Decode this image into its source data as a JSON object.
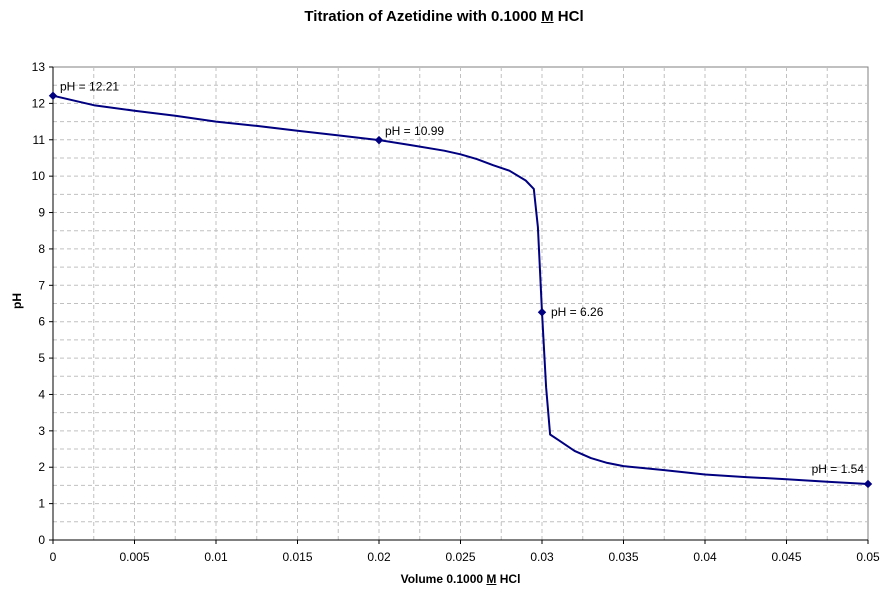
{
  "chart_data": {
    "type": "line",
    "title": {
      "pre": "Titration of Azetidine with 0.1000 ",
      "underlined": "M",
      "post": " HCl"
    },
    "xlabel": {
      "pre": "Volume 0.1000 ",
      "underlined": "M",
      "post": " HCl"
    },
    "ylabel": "pH",
    "xlim": [
      0,
      0.05
    ],
    "ylim": [
      0,
      13
    ],
    "x_ticks": [
      "0",
      "0.005",
      "0.01",
      "0.015",
      "0.02",
      "0.025",
      "0.03",
      "0.035",
      "0.04",
      "0.045",
      "0.05"
    ],
    "y_ticks": [
      "0",
      "1",
      "2",
      "3",
      "4",
      "5",
      "6",
      "7",
      "8",
      "9",
      "10",
      "11",
      "12",
      "13"
    ],
    "grid": true,
    "line_color": "#000080",
    "series": [
      {
        "x": [
          0,
          0.0025,
          0.005,
          0.0075,
          0.01,
          0.0125,
          0.015,
          0.0175,
          0.02,
          0.022,
          0.024,
          0.025,
          0.026,
          0.027,
          0.028,
          0.029,
          0.0295,
          0.02975,
          0.03,
          0.03025,
          0.0305,
          0.031,
          0.032,
          0.033,
          0.034,
          0.035,
          0.0375,
          0.04,
          0.0425,
          0.045,
          0.0475,
          0.05
        ],
        "y": [
          12.21,
          11.95,
          11.8,
          11.66,
          11.5,
          11.38,
          11.25,
          11.12,
          10.99,
          10.85,
          10.7,
          10.6,
          10.47,
          10.3,
          10.15,
          9.88,
          9.65,
          8.6,
          6.26,
          4.2,
          2.9,
          2.75,
          2.45,
          2.25,
          2.12,
          2.03,
          1.92,
          1.8,
          1.73,
          1.67,
          1.6,
          1.54
        ]
      }
    ],
    "annotations": [
      {
        "x": 0,
        "y": 12.21,
        "text": "pH = 12.21"
      },
      {
        "x": 0.02,
        "y": 10.99,
        "text": "pH = 10.99"
      },
      {
        "x": 0.03,
        "y": 6.26,
        "text": "pH = 6.26"
      },
      {
        "x": 0.05,
        "y": 1.54,
        "text": "pH = 1.54"
      }
    ]
  }
}
